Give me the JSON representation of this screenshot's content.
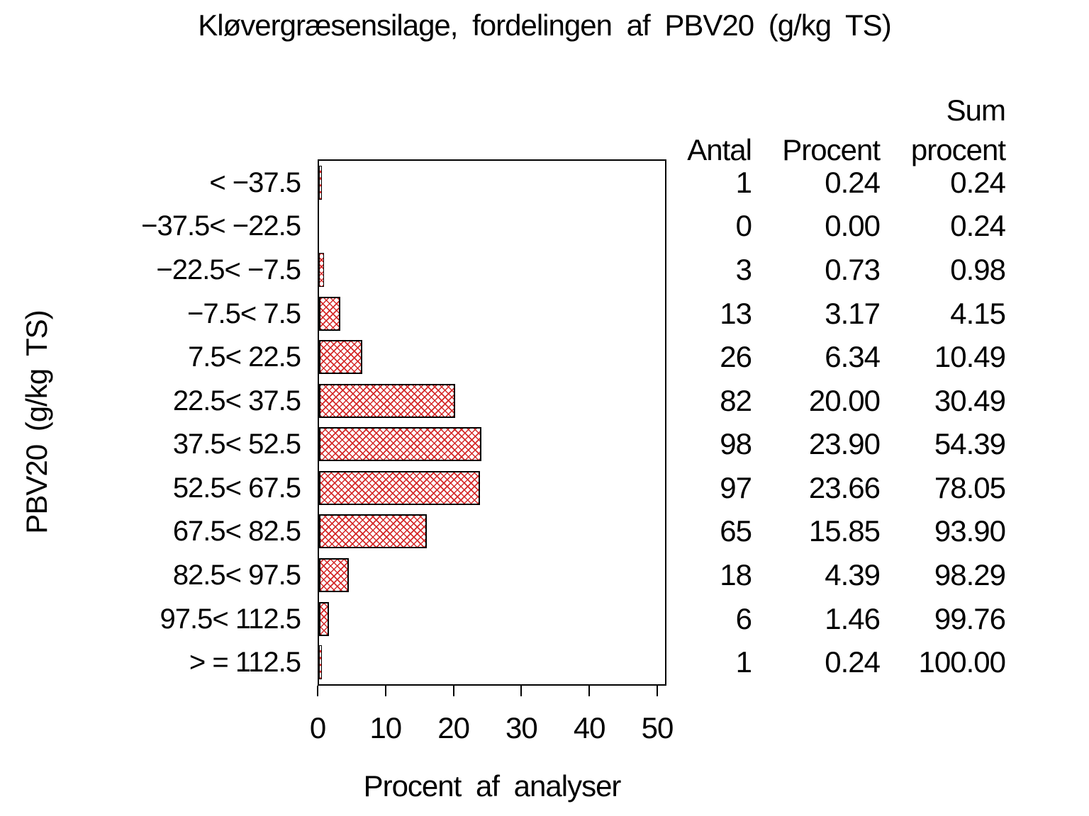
{
  "chart_data": {
    "type": "bar",
    "orientation": "horizontal",
    "title": "Kløvergræsensilage, fordelingen af PBV20 (g/kg TS)",
    "xlabel": "Procent af analyser",
    "ylabel": "PBV20 (g/kg TS)",
    "xlim": [
      0,
      50
    ],
    "xticks": [
      0,
      10,
      20,
      30,
      40,
      50
    ],
    "grid": false,
    "bar_pattern": "red-crosshatch",
    "bar_color": "#d42828",
    "bar_border_color": "#000000",
    "categories": [
      "< −37.5",
      "−37.5< −22.5",
      "−22.5< −7.5",
      "−7.5< 7.5",
      "7.5< 22.5",
      "22.5< 37.5",
      "37.5< 52.5",
      "52.5< 67.5",
      "67.5< 82.5",
      "82.5< 97.5",
      "97.5< 112.5",
      "> = 112.5"
    ],
    "values": [
      0.24,
      0.0,
      0.73,
      3.17,
      6.34,
      20.0,
      23.9,
      23.66,
      15.85,
      4.39,
      1.46,
      0.24
    ],
    "table": {
      "col_antal_header": "Antal",
      "col_procent_header": "Procent",
      "col_sum_header_line1": "Sum",
      "col_sum_header_line2": "procent",
      "antal": [
        "1",
        "0",
        "3",
        "13",
        "26",
        "82",
        "98",
        "97",
        "65",
        "18",
        "6",
        "1"
      ],
      "procent": [
        "0.24",
        "0.00",
        "0.73",
        "3.17",
        "6.34",
        "20.00",
        "23.90",
        "23.66",
        "15.85",
        "4.39",
        "1.46",
        "0.24"
      ],
      "sum_procent": [
        "0.24",
        "0.24",
        "0.98",
        "4.15",
        "10.49",
        "30.49",
        "54.39",
        "78.05",
        "93.90",
        "98.29",
        "99.76",
        "100.00"
      ]
    }
  }
}
